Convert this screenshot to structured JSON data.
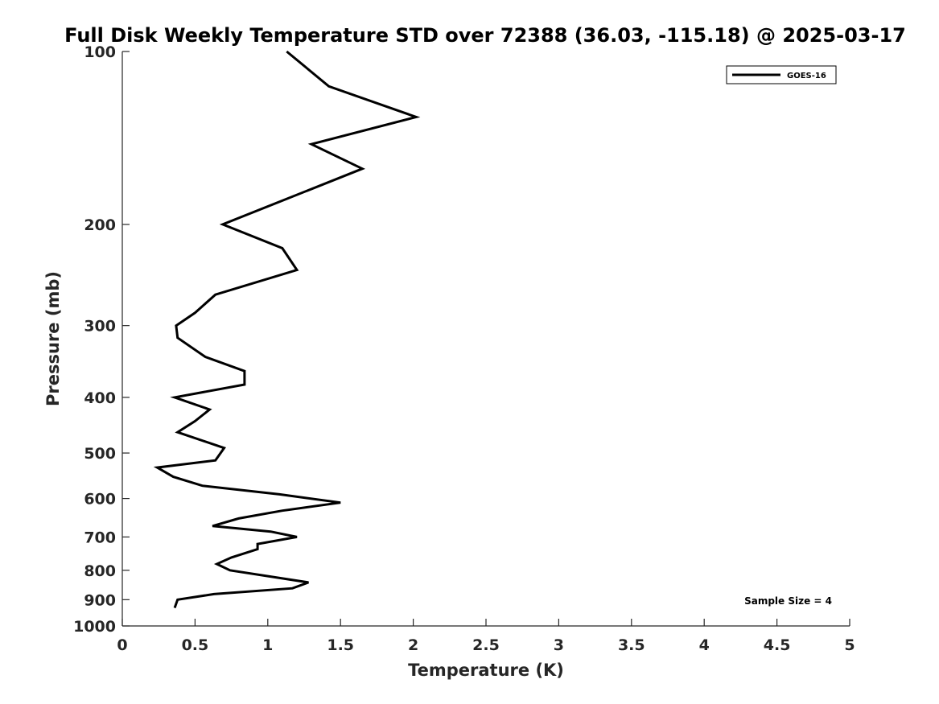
{
  "chart_data": {
    "type": "line",
    "title": "Full Disk Weekly Temperature STD over 72388 (36.03, -115.18) @ 2025-03-17",
    "xlabel": "Temperature (K)",
    "ylabel": "Pressure (mb)",
    "xlim": [
      0,
      5
    ],
    "ylim": [
      100,
      1000
    ],
    "y_scale": "log",
    "y_reversed": true,
    "x_ticks": [
      0,
      0.5,
      1,
      1.5,
      2,
      2.5,
      3,
      3.5,
      4,
      4.5,
      5
    ],
    "x_tick_labels": [
      "0",
      "0.5",
      "1",
      "1.5",
      "2",
      "2.5",
      "3",
      "3.5",
      "4",
      "4.5",
      "5"
    ],
    "y_ticks": [
      100,
      200,
      300,
      400,
      500,
      600,
      700,
      800,
      900,
      1000
    ],
    "y_tick_labels": [
      "100",
      "200",
      "300",
      "400",
      "500",
      "600",
      "700",
      "800",
      "900",
      "1000"
    ],
    "legend_position": "top-right",
    "grid": false,
    "annotation": "Sample Size = 4",
    "series": [
      {
        "name": "GOES-16",
        "color": "#000000",
        "x": [
          1.13,
          1.42,
          2.02,
          1.3,
          1.65,
          0.69,
          1.1,
          1.2,
          0.64,
          0.5,
          0.37,
          0.38,
          0.57,
          0.84,
          0.84,
          0.36,
          0.6,
          0.5,
          0.38,
          0.7,
          0.64,
          0.24,
          0.35,
          0.55,
          1.08,
          1.5,
          1.1,
          0.8,
          0.62,
          1.02,
          1.2,
          0.93,
          0.93,
          0.75,
          0.65,
          0.74,
          1.28,
          1.17,
          0.63,
          0.38,
          0.36
        ],
        "y": [
          100,
          115,
          130,
          145,
          160,
          200,
          220,
          240,
          265,
          285,
          300,
          315,
          340,
          360,
          380,
          400,
          420,
          440,
          460,
          490,
          515,
          530,
          550,
          570,
          590,
          610,
          630,
          650,
          670,
          685,
          700,
          720,
          735,
          760,
          780,
          800,
          840,
          860,
          880,
          900,
          930
        ]
      }
    ]
  }
}
